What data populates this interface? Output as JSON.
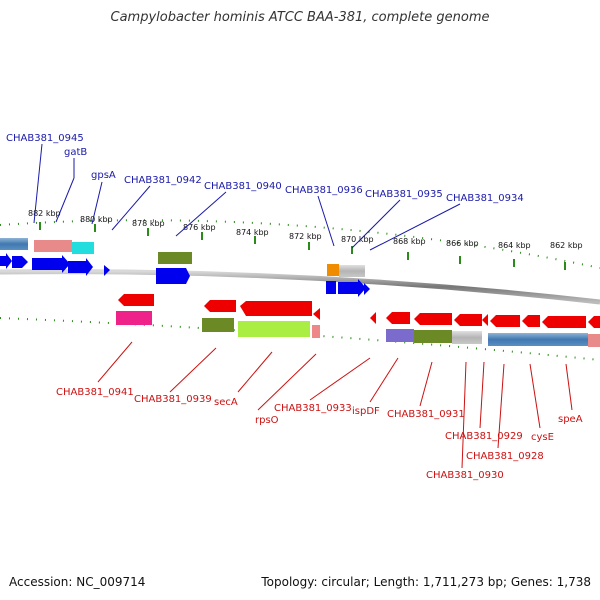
{
  "title": "Campylobacter hominis ATCC BAA-381, complete genome",
  "footer": {
    "accession": "Accession: NC_009714",
    "summary": "Topology: circular; Length: 1,711,273 bp; Genes: 1,738"
  },
  "ticks": [
    "882 kbp",
    "880 kbp",
    "878 kbp",
    "876 kbp",
    "874 kbp",
    "872 kbp",
    "870 kbp",
    "868 kbp",
    "866 kbp",
    "864 kbp",
    "862 kbp"
  ],
  "labels_top": [
    "CHAB381_0945",
    "gatB",
    "gpsA",
    "CHAB381_0942",
    "CHAB381_0940",
    "CHAB381_0936",
    "CHAB381_0935",
    "CHAB381_0934"
  ],
  "labels_bottom": [
    "CHAB381_0941",
    "CHAB381_0939",
    "secA",
    "rpsO",
    "CHAB381_0933",
    "ispDF",
    "CHAB381_0931",
    "CHAB381_0929",
    "CHAB381_0928",
    "CHAB381_0930",
    "cysE",
    "speA"
  ],
  "colors": {
    "forward_label": "#1a1aaa",
    "reverse_label": "#cc1111",
    "tick": "#2a8a1a",
    "backbone": "#888888",
    "gene_blue": "#0000ee",
    "gene_red": "#ee0000"
  }
}
